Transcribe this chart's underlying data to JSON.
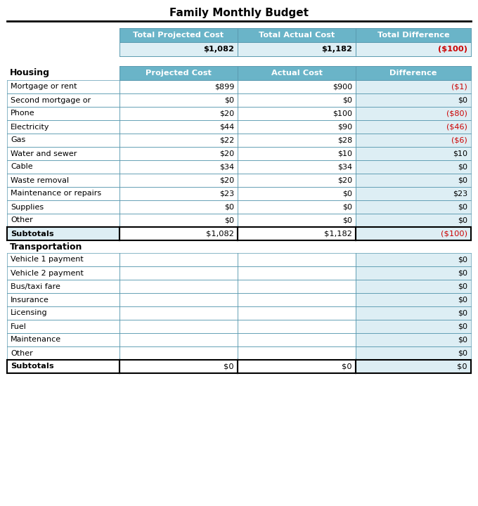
{
  "title": "Family Monthly Budget",
  "summary_headers": [
    "Total Projected Cost",
    "Total Actual Cost",
    "Total Difference"
  ],
  "summary_values": [
    "$1,082",
    "$1,182",
    "($100)"
  ],
  "summary_value_colors": [
    "#000000",
    "#000000",
    "#cc0000"
  ],
  "col_headers": [
    "Projected Cost",
    "Actual Cost",
    "Difference"
  ],
  "section1_label": "Housing",
  "housing_rows": [
    {
      "label": "Mortgage or rent",
      "proj": "$899",
      "actual": "$900",
      "diff": "($1)",
      "diff_color": "#cc0000"
    },
    {
      "label": "Second mortgage or",
      "proj": "$0",
      "actual": "$0",
      "diff": "$0",
      "diff_color": "#000000"
    },
    {
      "label": "Phone",
      "proj": "$20",
      "actual": "$100",
      "diff": "($80)",
      "diff_color": "#cc0000"
    },
    {
      "label": "Electricity",
      "proj": "$44",
      "actual": "$90",
      "diff": "($46)",
      "diff_color": "#cc0000"
    },
    {
      "label": "Gas",
      "proj": "$22",
      "actual": "$28",
      "diff": "($6)",
      "diff_color": "#cc0000"
    },
    {
      "label": "Water and sewer",
      "proj": "$20",
      "actual": "$10",
      "diff": "$10",
      "diff_color": "#000000"
    },
    {
      "label": "Cable",
      "proj": "$34",
      "actual": "$34",
      "diff": "$0",
      "diff_color": "#000000"
    },
    {
      "label": "Waste removal",
      "proj": "$20",
      "actual": "$20",
      "diff": "$0",
      "diff_color": "#000000"
    },
    {
      "label": "Maintenance or repairs",
      "proj": "$23",
      "actual": "$0",
      "diff": "$23",
      "diff_color": "#000000"
    },
    {
      "label": "Supplies",
      "proj": "$0",
      "actual": "$0",
      "diff": "$0",
      "diff_color": "#000000"
    },
    {
      "label": "Other",
      "proj": "$0",
      "actual": "$0",
      "diff": "$0",
      "diff_color": "#000000"
    }
  ],
  "housing_subtotal": {
    "label": "Subtotals",
    "proj": "$1,082",
    "actual": "$1,182",
    "diff": "($100)",
    "diff_color": "#cc0000"
  },
  "section2_label": "Transportation",
  "transport_rows": [
    {
      "label": "Vehicle 1 payment",
      "proj": "",
      "actual": "",
      "diff": "$0",
      "diff_color": "#000000"
    },
    {
      "label": "Vehicle 2 payment",
      "proj": "",
      "actual": "",
      "diff": "$0",
      "diff_color": "#000000"
    },
    {
      "label": "Bus/taxi fare",
      "proj": "",
      "actual": "",
      "diff": "$0",
      "diff_color": "#000000"
    },
    {
      "label": "Insurance",
      "proj": "",
      "actual": "",
      "diff": "$0",
      "diff_color": "#000000"
    },
    {
      "label": "Licensing",
      "proj": "",
      "actual": "",
      "diff": "$0",
      "diff_color": "#000000"
    },
    {
      "label": "Fuel",
      "proj": "",
      "actual": "",
      "diff": "$0",
      "diff_color": "#000000"
    },
    {
      "label": "Maintenance",
      "proj": "",
      "actual": "",
      "diff": "$0",
      "diff_color": "#000000"
    },
    {
      "label": "Other",
      "proj": "",
      "actual": "",
      "diff": "$0",
      "diff_color": "#000000"
    }
  ],
  "transport_subtotal": {
    "label": "Subtotals",
    "proj": "$0",
    "actual": "$0",
    "diff": "$0",
    "diff_color": "#000000"
  },
  "header_bg": "#6ab4c8",
  "header_text": "#ffffff",
  "row_bg_light": "#ddeef4",
  "row_bg_white": "#ffffff",
  "border_color": "#5a9ab0",
  "title_color": "#000000"
}
